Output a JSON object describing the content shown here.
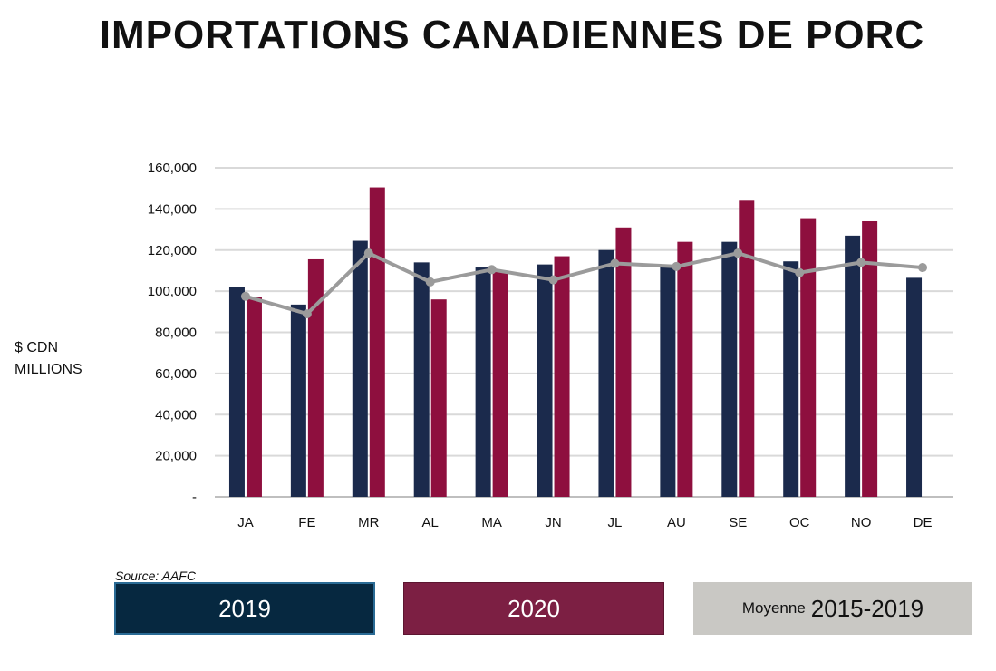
{
  "chart_data": {
    "type": "bar",
    "title": "IMPORTATIONS CANADIENNES DE PORC",
    "ylabel_lines": [
      "$ CDN",
      "MILLIONS"
    ],
    "source": "Source: AAFC",
    "categories": [
      "JA",
      "FE",
      "MR",
      "AL",
      "MA",
      "JN",
      "JL",
      "AU",
      "SE",
      "OC",
      "NO",
      "DE"
    ],
    "series": [
      {
        "name": "2019",
        "type": "bar",
        "color": "#1b2a4c",
        "values": [
          102000,
          93500,
          124500,
          114000,
          111500,
          113000,
          120000,
          112000,
          124000,
          114500,
          127000,
          106500
        ]
      },
      {
        "name": "2020",
        "type": "bar",
        "color": "#8e0f3e",
        "values": [
          97000,
          115500,
          150500,
          96000,
          110000,
          117000,
          131000,
          124000,
          144000,
          135500,
          134000,
          null
        ]
      },
      {
        "name": "2015-2019",
        "type": "line",
        "color": "#9b9b9b",
        "values": [
          97500,
          89000,
          118500,
          104500,
          110500,
          105500,
          113500,
          112000,
          118500,
          109000,
          114000,
          111500
        ]
      }
    ],
    "ylim": [
      0,
      160000
    ],
    "yticks": [
      0,
      20000,
      40000,
      60000,
      80000,
      100000,
      120000,
      140000,
      160000
    ],
    "ytick_labels": [
      "-",
      "20,000",
      "40,000",
      "60,000",
      "80,000",
      "100,000",
      "120,000",
      "140,000",
      "160,000"
    ],
    "grid": true
  },
  "legend": {
    "label_2019": "2019",
    "label_2020": "2020",
    "avg_prefix": "Moyenne",
    "avg_range": "2015-2019",
    "color_2019": "#062840",
    "color_2020": "#7c1f43",
    "color_avg": "#c9c8c4"
  }
}
